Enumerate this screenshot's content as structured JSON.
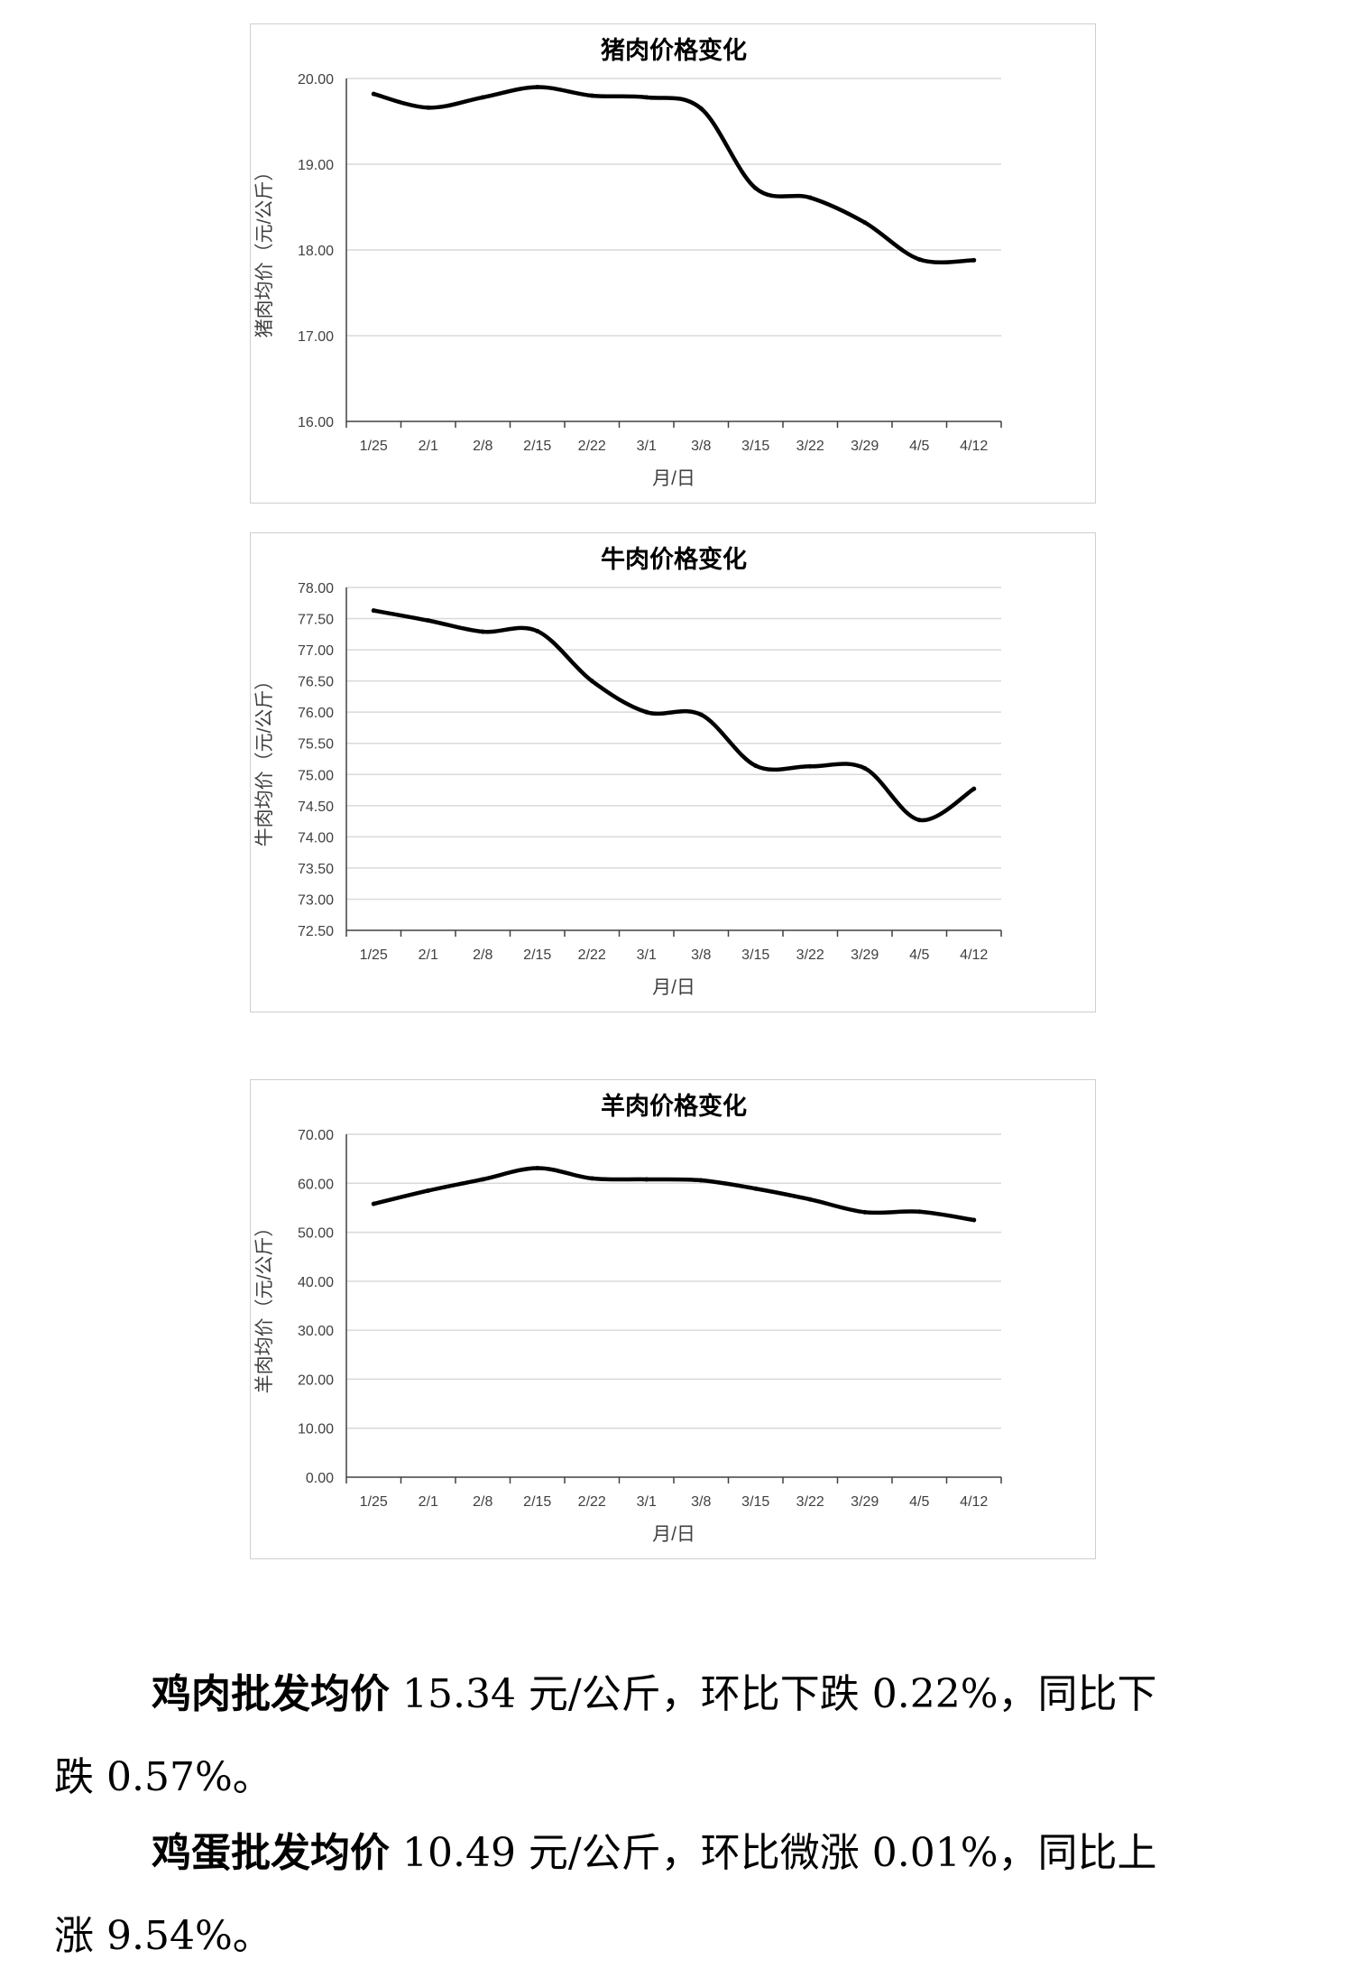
{
  "charts": [
    {
      "id": "pork",
      "chart_data": {
        "type": "line",
        "title": "猪肉价格变化",
        "xlabel": "月/日",
        "ylabel": "猪肉均价（元/公斤）",
        "categories": [
          "1/25",
          "2/1",
          "2/8",
          "2/15",
          "2/22",
          "3/1",
          "3/8",
          "3/15",
          "3/22",
          "3/29",
          "4/5",
          "4/12"
        ],
        "values": [
          19.82,
          19.66,
          19.78,
          19.9,
          19.8,
          19.78,
          19.65,
          18.72,
          18.61,
          18.32,
          17.89,
          17.88
        ],
        "ylim": [
          16.0,
          20.0
        ],
        "yticks": [
          "16.00",
          "17.00",
          "18.00",
          "19.00",
          "20.00"
        ],
        "grid": true,
        "line_color": "#000000"
      }
    },
    {
      "id": "beef",
      "chart_data": {
        "type": "line",
        "title": "牛肉价格变化",
        "xlabel": "月/日",
        "ylabel": "牛肉均价（元/公斤）",
        "categories": [
          "1/25",
          "2/1",
          "2/8",
          "2/15",
          "2/22",
          "3/1",
          "3/8",
          "3/15",
          "3/22",
          "3/29",
          "4/5",
          "4/12"
        ],
        "values": [
          77.63,
          77.47,
          77.29,
          77.3,
          76.5,
          76.0,
          75.96,
          75.14,
          75.13,
          75.1,
          74.27,
          74.77
        ],
        "ylim": [
          72.5,
          78.0
        ],
        "yticks": [
          "72.50",
          "73.00",
          "73.50",
          "74.00",
          "74.50",
          "75.00",
          "75.50",
          "76.00",
          "76.50",
          "77.00",
          "77.50",
          "78.00"
        ],
        "grid": true,
        "line_color": "#000000"
      }
    },
    {
      "id": "mutton",
      "chart_data": {
        "type": "line",
        "title": "羊肉价格变化",
        "xlabel": "月/日",
        "ylabel": "羊肉均价（元/公斤）",
        "categories": [
          "1/25",
          "2/1",
          "2/8",
          "2/15",
          "2/22",
          "3/1",
          "3/8",
          "3/15",
          "3/22",
          "3/29",
          "4/5",
          "4/12"
        ],
        "values": [
          55.8,
          58.5,
          60.8,
          63.1,
          61.0,
          60.8,
          60.6,
          58.9,
          56.7,
          54.1,
          54.2,
          52.5
        ],
        "ylim": [
          0,
          70
        ],
        "yticks": [
          "0.00",
          "10.00",
          "20.00",
          "30.00",
          "40.00",
          "50.00",
          "60.00",
          "70.00"
        ],
        "grid": true,
        "line_color": "#000000"
      }
    }
  ],
  "paragraphs": [
    {
      "lead": "鸡肉批发均价",
      "line1": " 15.34 元/公斤，环比下跌 0.22%，同比下",
      "line2": "跌 0.57%。"
    },
    {
      "lead": "鸡蛋批发均价",
      "line1": " 10.49 元/公斤，环比微涨 0.01%，同比上",
      "line2": "涨 9.54%。"
    }
  ]
}
